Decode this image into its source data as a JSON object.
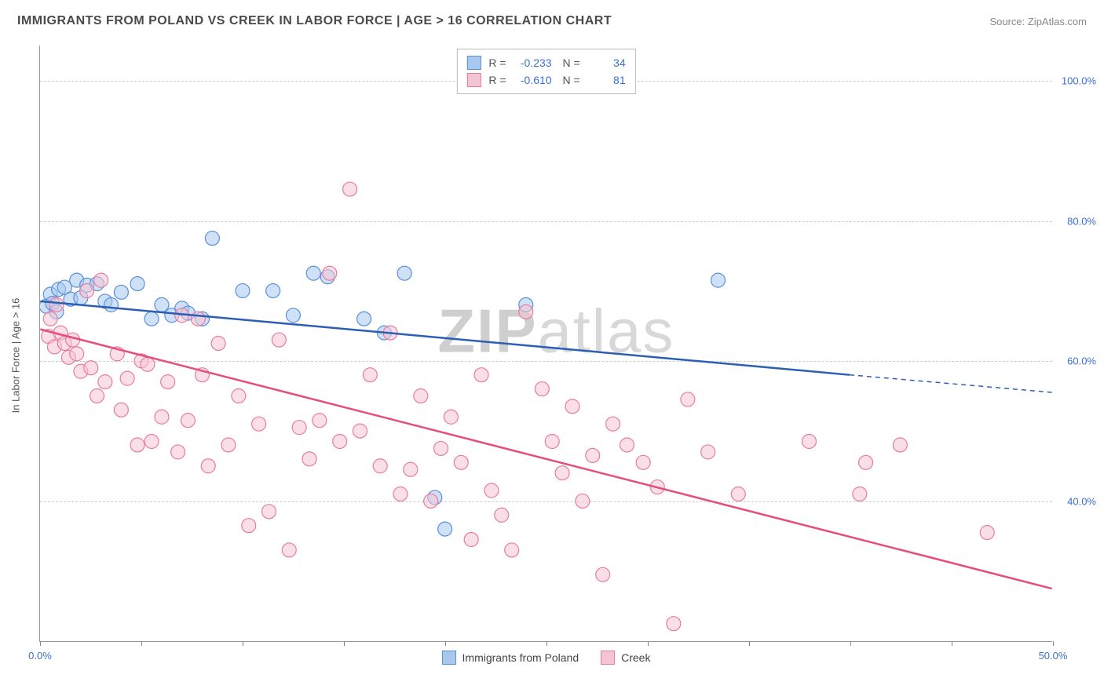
{
  "header": {
    "title": "IMMIGRANTS FROM POLAND VS CREEK IN LABOR FORCE | AGE > 16 CORRELATION CHART",
    "source_prefix": "Source: ",
    "source_name": "ZipAtlas.com"
  },
  "chart": {
    "type": "scatter",
    "y_axis_label": "In Labor Force | Age > 16",
    "background_color": "#ffffff",
    "grid_color": "#cccccc",
    "axis_color": "#999999",
    "watermark_text_a": "ZIP",
    "watermark_text_b": "atlas",
    "xlim": [
      0,
      50
    ],
    "ylim": [
      20,
      105
    ],
    "x_ticks": [
      0,
      5,
      10,
      15,
      20,
      25,
      30,
      35,
      40,
      45,
      50
    ],
    "x_tick_labels": {
      "0": "0.0%",
      "50": "50.0%"
    },
    "y_ticks": [
      40,
      60,
      80,
      100
    ],
    "y_tick_labels": {
      "40": "40.0%",
      "60": "60.0%",
      "80": "80.0%",
      "100": "100.0%"
    },
    "label_color": "#3b6fd4",
    "label_fontsize": 13,
    "marker_radius": 9,
    "marker_opacity": 0.55,
    "line_width": 2.5,
    "series": [
      {
        "name": "Immigrants from Poland",
        "fill_color": "#a8c8f0",
        "stroke_color": "#5a8fd8",
        "line_color": "#2c5fb3",
        "r_value": "-0.233",
        "n_value": "34",
        "trend": {
          "x1": 0,
          "y1": 68.5,
          "x2": 40,
          "y2": 58,
          "extend_x2": 50,
          "extend_y2": 55.5
        },
        "points": [
          [
            0.3,
            67.8
          ],
          [
            0.5,
            69.5
          ],
          [
            0.6,
            68.2
          ],
          [
            0.8,
            67.0
          ],
          [
            0.9,
            70.2
          ],
          [
            1.2,
            70.5
          ],
          [
            1.5,
            68.8
          ],
          [
            1.8,
            71.5
          ],
          [
            2.0,
            69.0
          ],
          [
            2.3,
            70.8
          ],
          [
            2.8,
            71.0
          ],
          [
            3.2,
            68.5
          ],
          [
            3.5,
            68.0
          ],
          [
            4.0,
            69.8
          ],
          [
            4.8,
            71.0
          ],
          [
            5.5,
            66.0
          ],
          [
            6.0,
            68.0
          ],
          [
            6.5,
            66.5
          ],
          [
            7.0,
            67.5
          ],
          [
            7.3,
            66.8
          ],
          [
            8.0,
            66.0
          ],
          [
            8.5,
            77.5
          ],
          [
            10.0,
            70.0
          ],
          [
            11.5,
            70.0
          ],
          [
            12.5,
            66.5
          ],
          [
            13.5,
            72.5
          ],
          [
            14.2,
            72.0
          ],
          [
            16.0,
            66.0
          ],
          [
            17.0,
            64.0
          ],
          [
            18.0,
            72.5
          ],
          [
            19.5,
            40.5
          ],
          [
            20.0,
            36.0
          ],
          [
            24.0,
            68.0
          ],
          [
            33.5,
            71.5
          ]
        ]
      },
      {
        "name": "Creek",
        "fill_color": "#f5c4d2",
        "stroke_color": "#e87ba0",
        "line_color": "#e54d7b",
        "r_value": "-0.610",
        "n_value": "81",
        "trend": {
          "x1": 0,
          "y1": 64.5,
          "x2": 50,
          "y2": 27.5
        },
        "points": [
          [
            0.4,
            63.5
          ],
          [
            0.5,
            66.0
          ],
          [
            0.7,
            62.0
          ],
          [
            0.8,
            68.0
          ],
          [
            1.0,
            64.0
          ],
          [
            1.2,
            62.5
          ],
          [
            1.4,
            60.5
          ],
          [
            1.6,
            63.0
          ],
          [
            1.8,
            61.0
          ],
          [
            2.0,
            58.5
          ],
          [
            2.3,
            70.0
          ],
          [
            2.5,
            59.0
          ],
          [
            2.8,
            55.0
          ],
          [
            3.0,
            71.5
          ],
          [
            3.2,
            57.0
          ],
          [
            3.8,
            61.0
          ],
          [
            4.0,
            53.0
          ],
          [
            4.3,
            57.5
          ],
          [
            4.8,
            48.0
          ],
          [
            5.0,
            60.0
          ],
          [
            5.3,
            59.5
          ],
          [
            5.5,
            48.5
          ],
          [
            6.0,
            52.0
          ],
          [
            6.3,
            57.0
          ],
          [
            6.8,
            47.0
          ],
          [
            7.0,
            66.5
          ],
          [
            7.3,
            51.5
          ],
          [
            7.8,
            66.0
          ],
          [
            8.0,
            58.0
          ],
          [
            8.3,
            45.0
          ],
          [
            8.8,
            62.5
          ],
          [
            9.3,
            48.0
          ],
          [
            9.8,
            55.0
          ],
          [
            10.3,
            36.5
          ],
          [
            10.8,
            51.0
          ],
          [
            11.3,
            38.5
          ],
          [
            11.8,
            63.0
          ],
          [
            12.3,
            33.0
          ],
          [
            12.8,
            50.5
          ],
          [
            13.3,
            46.0
          ],
          [
            13.8,
            51.5
          ],
          [
            14.3,
            72.5
          ],
          [
            14.8,
            48.5
          ],
          [
            15.3,
            84.5
          ],
          [
            15.8,
            50.0
          ],
          [
            16.3,
            58.0
          ],
          [
            16.8,
            45.0
          ],
          [
            17.3,
            64.0
          ],
          [
            17.8,
            41.0
          ],
          [
            18.3,
            44.5
          ],
          [
            18.8,
            55.0
          ],
          [
            19.3,
            40.0
          ],
          [
            19.8,
            47.5
          ],
          [
            20.3,
            52.0
          ],
          [
            20.8,
            45.5
          ],
          [
            21.3,
            34.5
          ],
          [
            21.8,
            58.0
          ],
          [
            22.3,
            41.5
          ],
          [
            22.8,
            38.0
          ],
          [
            23.3,
            33.0
          ],
          [
            24.0,
            67.0
          ],
          [
            24.8,
            56.0
          ],
          [
            25.3,
            48.5
          ],
          [
            25.8,
            44.0
          ],
          [
            26.3,
            53.5
          ],
          [
            26.8,
            40.0
          ],
          [
            27.3,
            46.5
          ],
          [
            27.8,
            29.5
          ],
          [
            28.3,
            51.0
          ],
          [
            29.0,
            48.0
          ],
          [
            29.8,
            45.5
          ],
          [
            30.5,
            42.0
          ],
          [
            31.3,
            22.5
          ],
          [
            32.0,
            54.5
          ],
          [
            33.0,
            47.0
          ],
          [
            34.5,
            41.0
          ],
          [
            38.0,
            48.5
          ],
          [
            40.5,
            41.0
          ],
          [
            40.8,
            45.5
          ],
          [
            42.5,
            48.0
          ],
          [
            46.8,
            35.5
          ]
        ]
      }
    ],
    "legend_bottom": [
      {
        "label": "Immigrants from Poland",
        "color_idx": 0
      },
      {
        "label": "Creek",
        "color_idx": 1
      }
    ]
  }
}
